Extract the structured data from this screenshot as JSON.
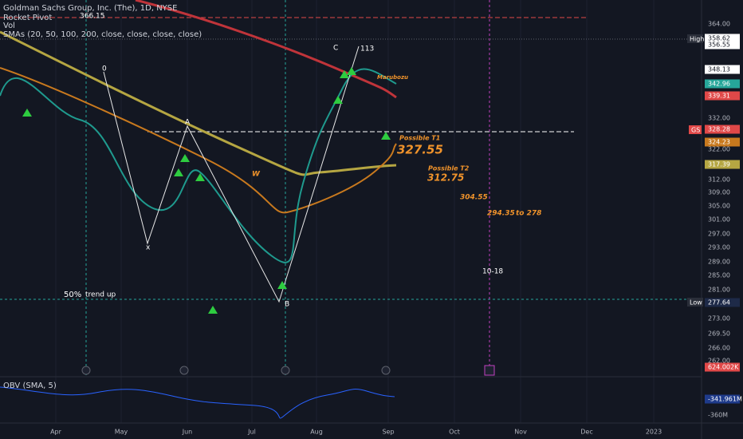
{
  "header": {
    "title": "Goldman Sachs Group, Inc. (The), 1D, NYSE",
    "indicators": [
      "Rocket Pivot",
      "Vol",
      "SMAs (20, 50, 100, 200, close, close, close, close)"
    ]
  },
  "obv": {
    "label": "OBV (SMA, 5)"
  },
  "annotations": [
    "366.15",
    "0",
    "A",
    "x",
    "W",
    "B",
    "C",
    "113",
    "Marubozu",
    "Possible T1",
    "327.55",
    "Possible T2",
    "312.75",
    "304.55",
    "294.35",
    "to 278",
    "10-18",
    "50%",
    "trend up"
  ],
  "badges": {
    "high": "High",
    "low": "Low",
    "symbol": "GS"
  },
  "price_axis": [
    "364.00",
    "358.62",
    "356.55",
    "348.13",
    "342.96",
    "339.31",
    "332.00",
    "328.28",
    "324.23",
    "322.00",
    "317.39",
    "312.00",
    "309.00",
    "305.00",
    "301.00",
    "297.00",
    "293.00",
    "289.00",
    "285.00",
    "281.00",
    "277.64",
    "273.00",
    "269.50",
    "266.00",
    "262.00",
    "624.002K",
    "-341.961M",
    "-360M"
  ],
  "time_axis": [
    "Apr",
    "May",
    "Jun",
    "Jul",
    "Aug",
    "Sep",
    "Oct",
    "Nov",
    "Dec",
    "2023"
  ]
}
